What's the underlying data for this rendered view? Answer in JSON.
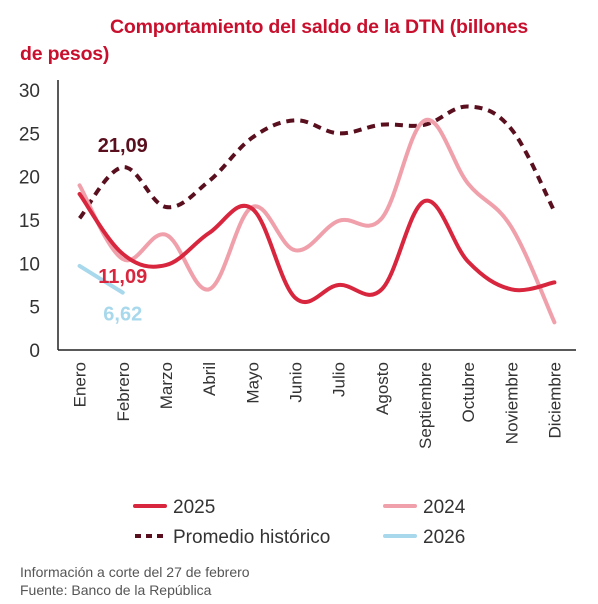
{
  "chart_data": {
    "type": "line",
    "title_line1": "Comportamiento del saldo de la DTN (billones",
    "title_line2": "de pesos)",
    "categories": [
      "Enero",
      "Febrero",
      "Marzo",
      "Abril",
      "Mayo",
      "Junio",
      "Julio",
      "Agosto",
      "Septiembre",
      "Octubre",
      "Noviembre",
      "Diciembre"
    ],
    "ylim": [
      0,
      30
    ],
    "yticks": [
      0,
      5,
      10,
      15,
      20,
      25,
      30
    ],
    "grid": false,
    "legend_position": "bottom",
    "series": [
      {
        "name": "2025",
        "color": "#d7263d",
        "style": "solid",
        "values": [
          18,
          11.09,
          9.8,
          13.5,
          16.3,
          6.0,
          7.5,
          7.0,
          17.2,
          10.2,
          7.0,
          7.8
        ]
      },
      {
        "name": "2024",
        "color": "#f0a0ab",
        "style": "solid",
        "values": [
          19,
          10.5,
          13.3,
          7.0,
          16.5,
          11.5,
          14.9,
          15.2,
          26.5,
          19.2,
          14.2,
          3.2
        ]
      },
      {
        "name": "Promedio histórico",
        "color": "#5a0f1e",
        "style": "dashed",
        "values": [
          15.2,
          21.09,
          16.5,
          19.5,
          24.5,
          26.5,
          25.0,
          26.0,
          26.0,
          28.1,
          25.5,
          16.0
        ]
      },
      {
        "name": "2026",
        "color": "#a8d8ec",
        "style": "solid",
        "values": [
          9.7,
          6.62,
          null,
          null,
          null,
          null,
          null,
          null,
          null,
          null,
          null,
          null
        ]
      }
    ],
    "annotations": [
      {
        "text": "21,09",
        "series": "Promedio histórico",
        "index": 1,
        "color": "#5a0f1e"
      },
      {
        "text": "11,09",
        "series": "2025",
        "index": 1,
        "color": "#d7263d"
      },
      {
        "text": "6,62",
        "series": "2026",
        "index": 1,
        "color": "#a8d8ec"
      }
    ]
  },
  "notes": {
    "line1": "Información a corte del 27 de febrero",
    "line2": "Fuente: Banco de la República"
  }
}
